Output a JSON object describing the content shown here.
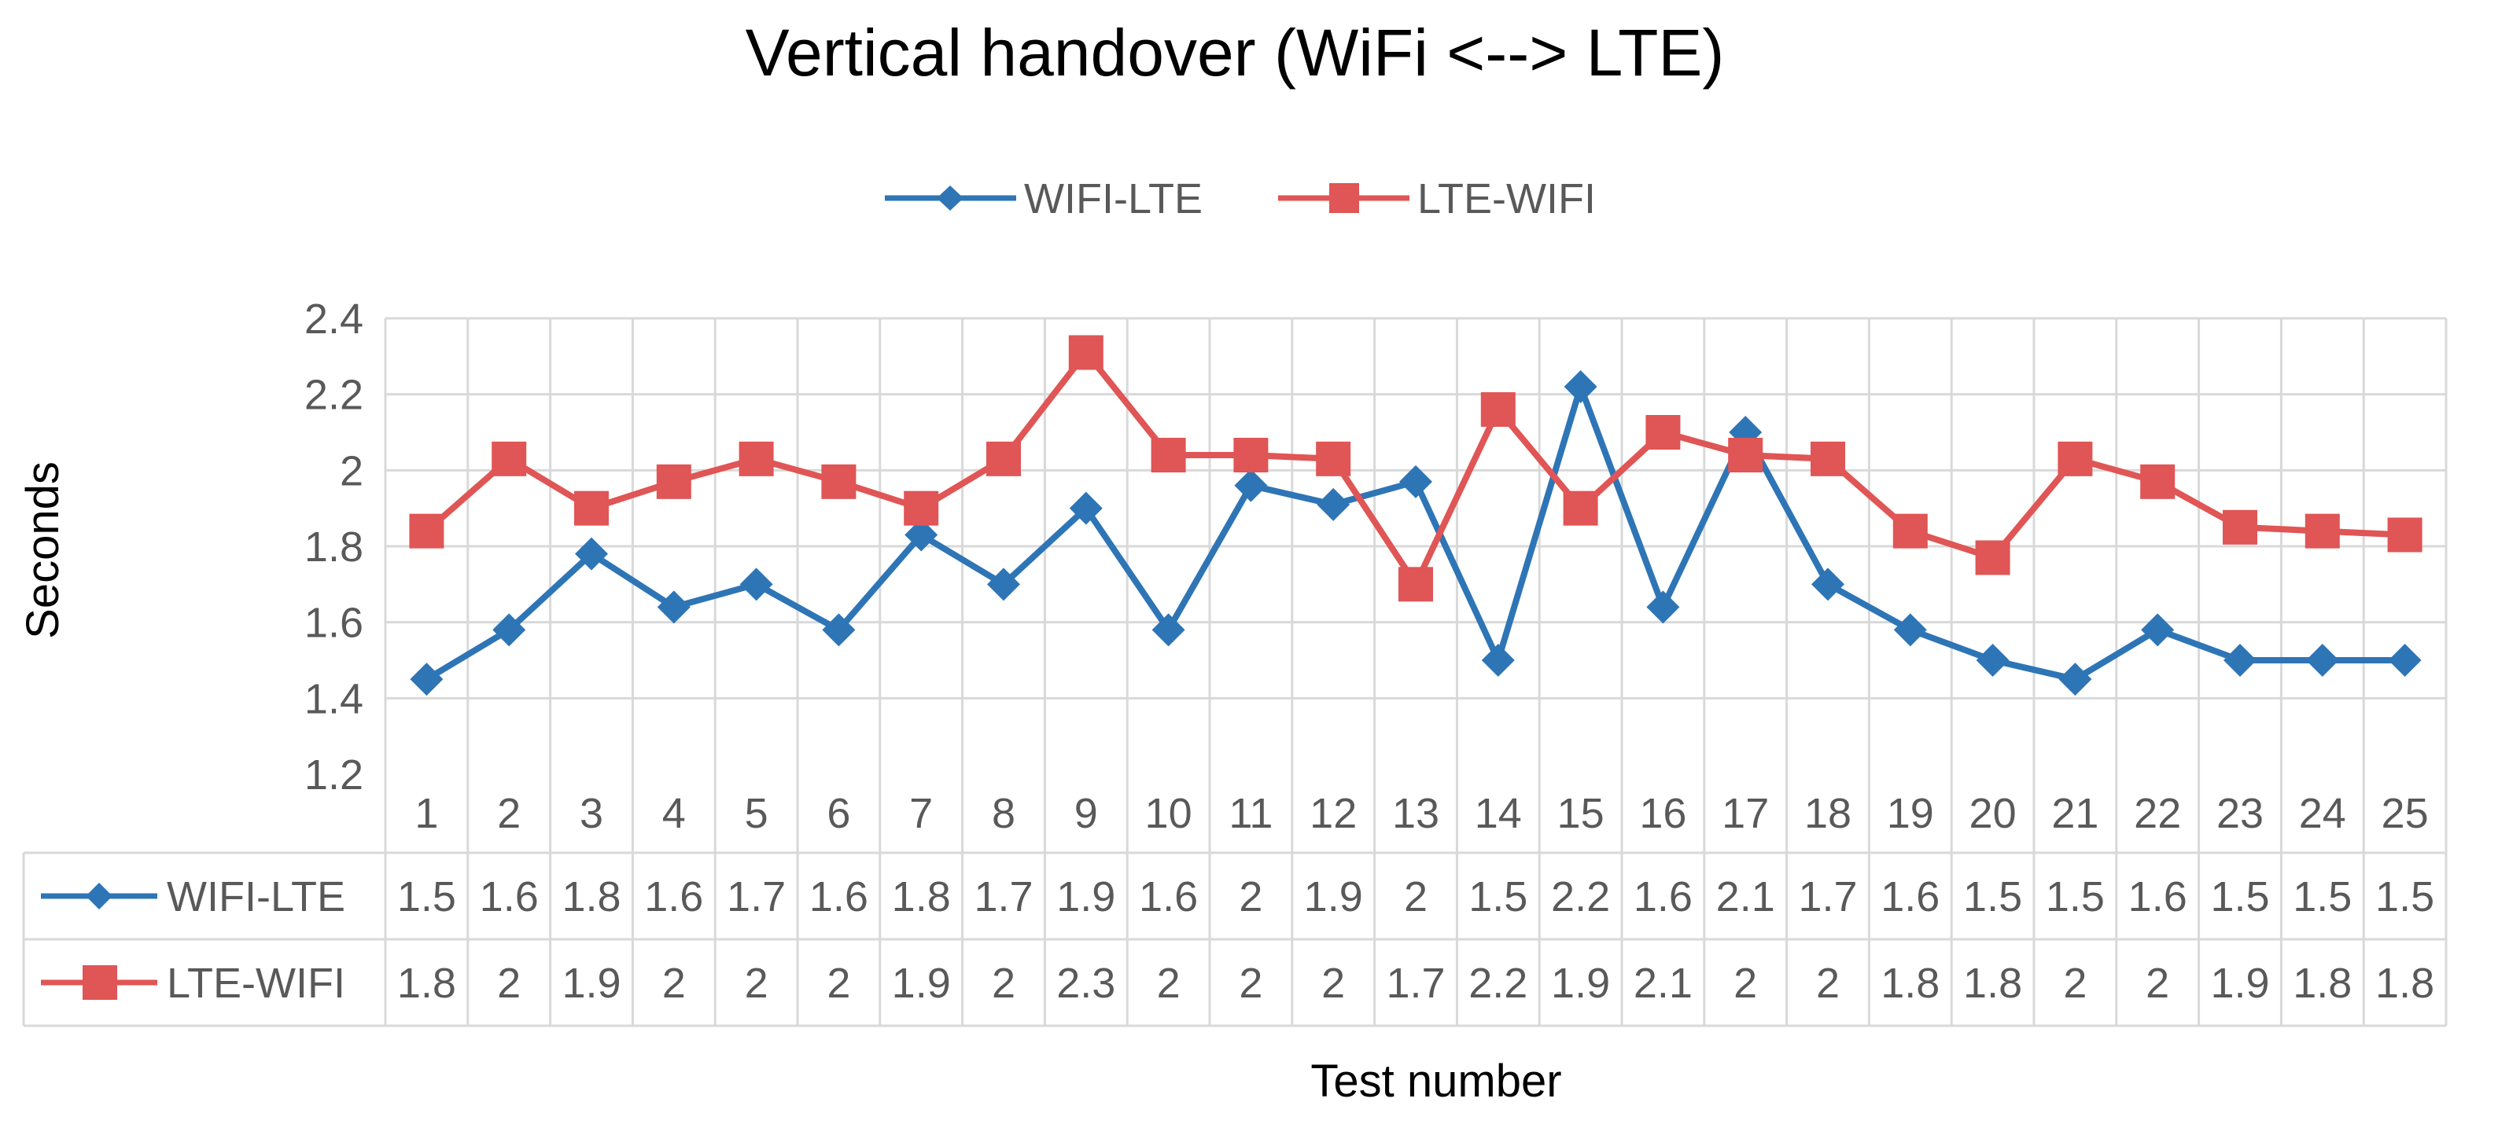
{
  "chart_data": {
    "type": "line",
    "title": "Vertical handover (WiFi <--> LTE)",
    "xlabel": "Test number",
    "ylabel": "Seconds",
    "ylim": [
      1.2,
      2.4
    ],
    "yticks": [
      "1.2",
      "1.4",
      "1.6",
      "1.8",
      "2",
      "2.2",
      "2.4"
    ],
    "grid": true,
    "legend_position": "top-center",
    "has_data_table": true,
    "categories": [
      "1",
      "2",
      "3",
      "4",
      "5",
      "6",
      "7",
      "8",
      "9",
      "10",
      "11",
      "12",
      "13",
      "14",
      "15",
      "16",
      "17",
      "18",
      "19",
      "20",
      "21",
      "22",
      "23",
      "24",
      "25"
    ],
    "series": [
      {
        "name": "WIFI-LTE",
        "color": "#2E75B6",
        "marker": "diamond",
        "values": [
          1.45,
          1.58,
          1.78,
          1.64,
          1.7,
          1.58,
          1.83,
          1.7,
          1.9,
          1.58,
          1.96,
          1.91,
          1.97,
          1.5,
          2.22,
          1.64,
          2.1,
          1.7,
          1.58,
          1.5,
          1.45,
          1.58,
          1.5,
          1.5,
          1.5
        ],
        "table_values": [
          "1.5",
          "1.6",
          "1.8",
          "1.6",
          "1.7",
          "1.6",
          "1.8",
          "1.7",
          "1.9",
          "1.6",
          "2",
          "1.9",
          "2",
          "1.5",
          "2.2",
          "1.6",
          "2.1",
          "1.7",
          "1.6",
          "1.5",
          "1.5",
          "1.6",
          "1.5",
          "1.5",
          "1.5"
        ]
      },
      {
        "name": "LTE-WIFI",
        "color": "#E05555",
        "marker": "square",
        "values": [
          1.84,
          2.03,
          1.9,
          1.97,
          2.03,
          1.97,
          1.9,
          2.03,
          2.31,
          2.04,
          2.04,
          2.03,
          1.7,
          2.16,
          1.9,
          2.1,
          2.04,
          2.03,
          1.84,
          1.77,
          2.03,
          1.97,
          1.85,
          1.84,
          1.83
        ],
        "table_values": [
          "1.8",
          "2",
          "1.9",
          "2",
          "2",
          "2",
          "1.9",
          "2",
          "2.3",
          "2",
          "2",
          "2",
          "1.7",
          "2.2",
          "1.9",
          "2.1",
          "2",
          "2",
          "1.8",
          "1.8",
          "2",
          "2",
          "1.9",
          "1.8",
          "1.8"
        ]
      }
    ]
  }
}
